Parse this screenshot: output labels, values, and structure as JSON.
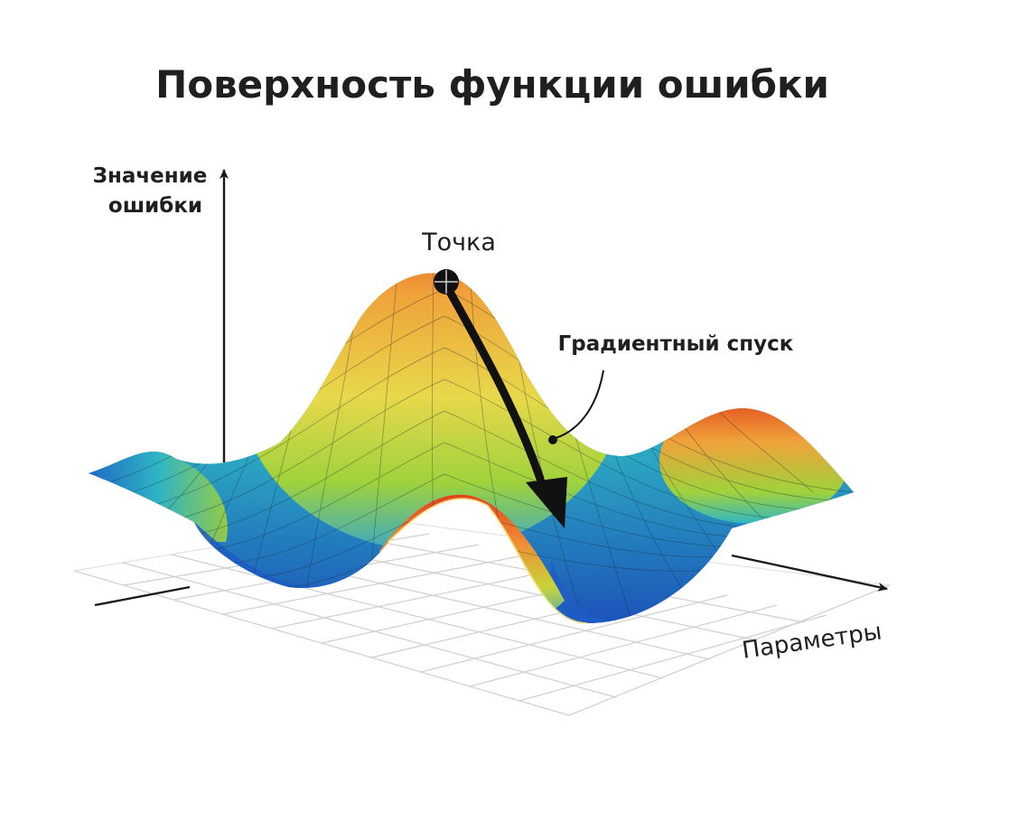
{
  "diagram": {
    "title": "Поверхность функции ошибки",
    "y_axis_label_line1": "Значение",
    "y_axis_label_line2": "ошибки",
    "x_axis_label": "Параметры",
    "point_label": "Точка",
    "descent_label": "Градиентный спуск",
    "colors": {
      "text": "#1f1f1f",
      "surface_low": "#1e63c6",
      "surface_mid_low": "#2fb7c4",
      "surface_mid": "#b9d83a",
      "surface_high": "#f0a23a",
      "surface_peak": "#e2401c",
      "grid_floor": "#cfcfcf",
      "axis": "#1a1a1a"
    },
    "icons": [
      "point-marker-icon",
      "descent-arrow-icon"
    ]
  }
}
